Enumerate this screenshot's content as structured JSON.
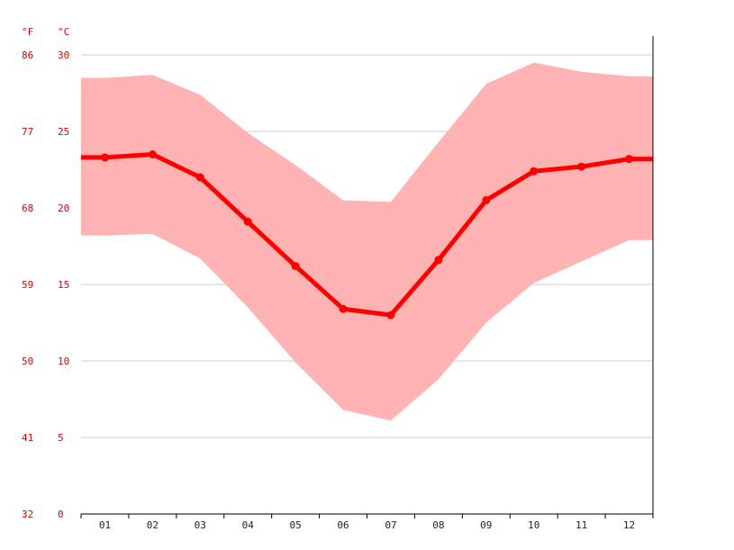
{
  "chart_data": {
    "type": "line",
    "title": "",
    "units": {
      "fahrenheit": "°F",
      "celsius": "°C"
    },
    "categories": [
      "01",
      "02",
      "03",
      "04",
      "05",
      "06",
      "07",
      "08",
      "09",
      "10",
      "11",
      "12"
    ],
    "y_celsius_ticks": [
      "0",
      "5",
      "10",
      "15",
      "20",
      "25",
      "30"
    ],
    "y_fahrenheit_ticks": [
      "32",
      "41",
      "50",
      "59",
      "68",
      "77",
      "86"
    ],
    "ylim": [
      0,
      30
    ],
    "grid": true,
    "series": [
      {
        "role": "mean",
        "values": [
          23.3,
          23.5,
          22.0,
          19.1,
          16.2,
          13.4,
          13.0,
          16.6,
          20.5,
          22.4,
          22.7,
          23.2
        ]
      },
      {
        "role": "max",
        "values": [
          28.5,
          28.7,
          27.4,
          24.9,
          22.8,
          20.5,
          20.4,
          24.3,
          28.1,
          29.5,
          28.9,
          28.6
        ]
      },
      {
        "role": "min",
        "values": [
          18.2,
          18.3,
          16.7,
          13.5,
          9.9,
          6.8,
          6.1,
          8.8,
          12.5,
          15.1,
          16.5,
          17.9
        ]
      }
    ],
    "colors": {
      "line": "#ff0000",
      "band": "#ffb3b3",
      "grid": "#cccccc",
      "axis": "#000000",
      "tick_text": "#e00000"
    }
  }
}
